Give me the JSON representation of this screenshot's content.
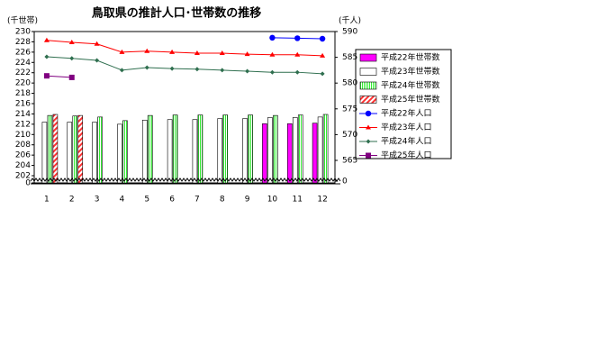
{
  "chart_data": {
    "type": "bar_line_combo",
    "title": "鳥取県の推計人口･世帯数の推移",
    "y_label": "(千世帯)",
    "y2_label": "(千人)",
    "categories": [
      "1",
      "2",
      "3",
      "4",
      "5",
      "6",
      "7",
      "8",
      "9",
      "10",
      "11",
      "12"
    ],
    "ylim": [
      202,
      230
    ],
    "yticks": [
      0,
      202,
      204,
      206,
      208,
      210,
      212,
      214,
      216,
      218,
      220,
      222,
      224,
      226,
      228,
      230
    ],
    "y2lim": [
      565,
      590
    ],
    "y2ticks": [
      0,
      565,
      570,
      575,
      580,
      585,
      590
    ],
    "axis_break": true,
    "series": [
      {
        "name": "平成22年世帯数",
        "kind": "bar",
        "color": "#ff00ff",
        "hatch": "none",
        "values": [
          null,
          null,
          null,
          null,
          null,
          null,
          null,
          null,
          null,
          212.1,
          212.1,
          212.2
        ]
      },
      {
        "name": "平成23年世帯数",
        "kind": "bar",
        "color": "#ffffff",
        "hatch": "none",
        "values": [
          212.4,
          212.4,
          212.4,
          212.0,
          212.8,
          212.9,
          212.9,
          213.1,
          213.1,
          213.3,
          213.3,
          213.4
        ]
      },
      {
        "name": "平成24年世帯数",
        "kind": "bar",
        "color": "#33ee33",
        "hatch": "vertical",
        "values": [
          213.7,
          213.6,
          213.4,
          212.7,
          213.7,
          213.8,
          213.8,
          213.8,
          213.8,
          213.7,
          213.8,
          213.9
        ]
      },
      {
        "name": "平成25年世帯数",
        "kind": "bar",
        "color": "#ff3333",
        "hatch": "diagonal",
        "values": [
          213.9,
          213.7,
          null,
          null,
          null,
          null,
          null,
          null,
          null,
          null,
          null,
          null
        ]
      },
      {
        "name": "平成22年人口",
        "kind": "line",
        "axis": "y2",
        "color": "#0000ff",
        "marker": "circle",
        "values": [
          null,
          null,
          null,
          null,
          null,
          null,
          null,
          null,
          null,
          588.8,
          588.7,
          588.6
        ]
      },
      {
        "name": "平成23年人口",
        "kind": "line",
        "axis": "y2",
        "color": "#ff0000",
        "marker": "triangle",
        "values": [
          588.3,
          587.9,
          587.6,
          586.0,
          586.2,
          586.0,
          585.8,
          585.8,
          585.6,
          585.5,
          585.5,
          585.3
        ]
      },
      {
        "name": "平成24年人口",
        "kind": "line",
        "axis": "y2",
        "color": "#2f6f4f",
        "marker": "diamond",
        "values": [
          585.1,
          584.8,
          584.4,
          582.5,
          583.0,
          582.8,
          582.7,
          582.5,
          582.3,
          582.1,
          582.1,
          581.8
        ]
      },
      {
        "name": "平成25年人口",
        "kind": "line",
        "axis": "y2",
        "color": "#800080",
        "marker": "square",
        "values": [
          581.4,
          581.1,
          null,
          null,
          null,
          null,
          null,
          null,
          null,
          null,
          null,
          null
        ]
      }
    ]
  }
}
